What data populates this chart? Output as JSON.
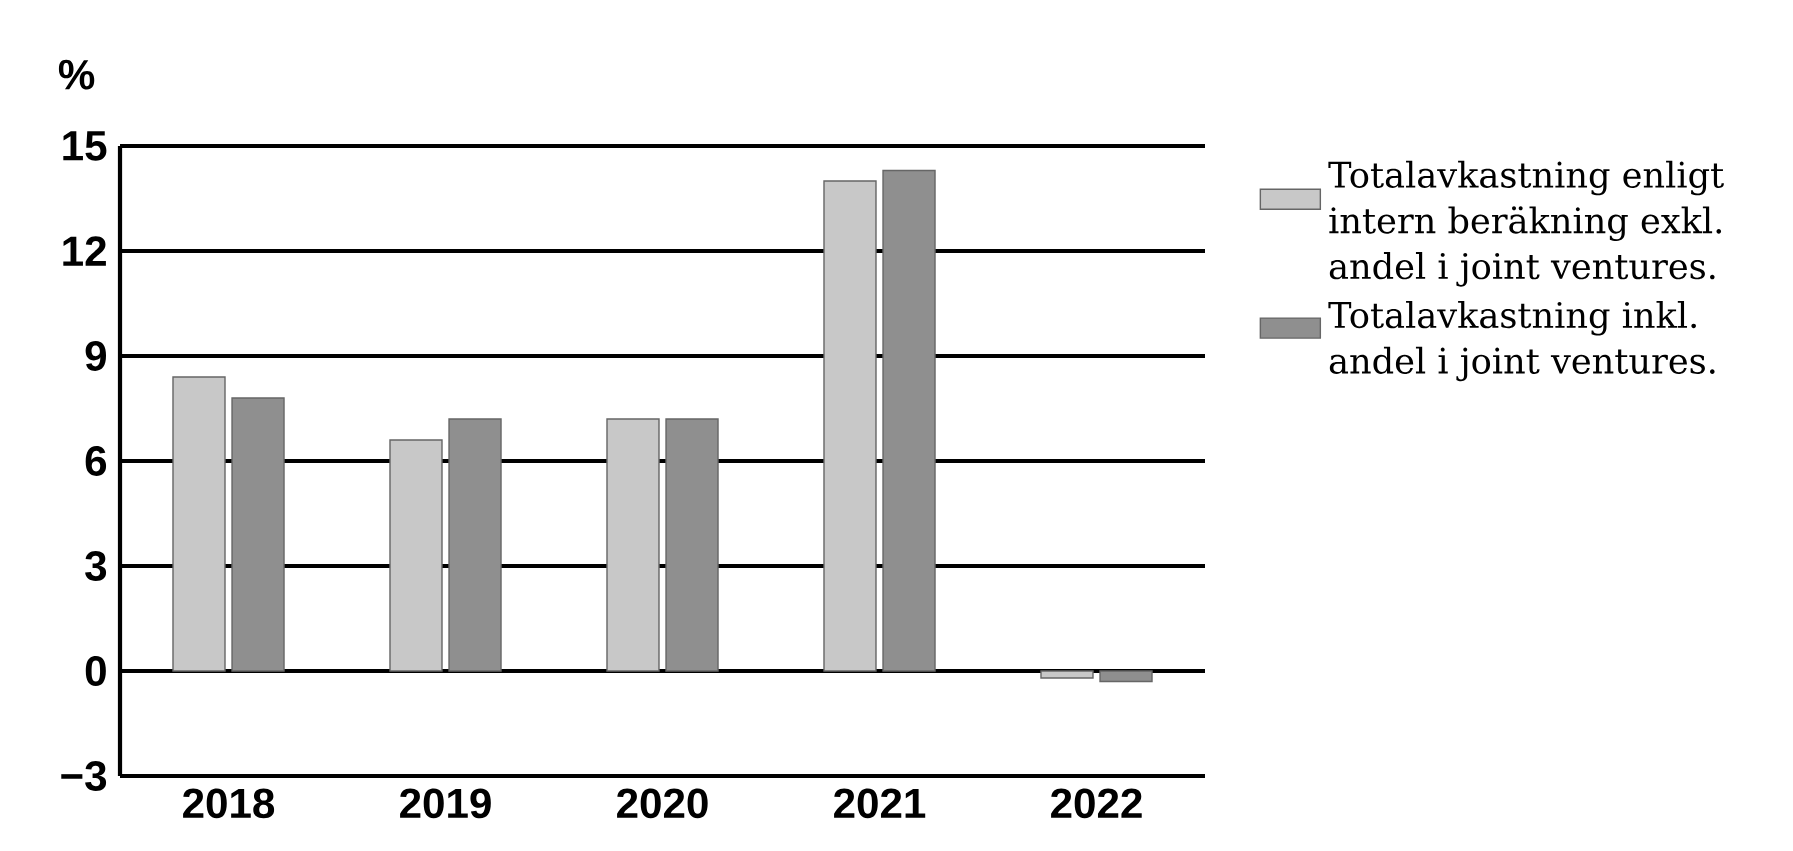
{
  "chart_data": {
    "type": "bar",
    "ylabel": "%",
    "categories": [
      "2018",
      "2019",
      "2020",
      "2021",
      "2022"
    ],
    "series": [
      {
        "name": "Totalavkastning enligt intern beräkning exkl. andel i joint ventures.",
        "color": "#c8c8c8",
        "values": [
          8.4,
          6.6,
          7.2,
          14.0,
          -0.2
        ]
      },
      {
        "name": "Totalavkastning inkl. andel i joint ventures.",
        "color": "#8f8f8f",
        "values": [
          7.8,
          7.2,
          7.2,
          14.3,
          -0.3
        ]
      }
    ],
    "ylim": [
      -3,
      15
    ],
    "yticks": [
      {
        "value": -3,
        "label": "−3"
      },
      0,
      3,
      6,
      9,
      12,
      15
    ],
    "grid": "y",
    "legend": "right"
  }
}
